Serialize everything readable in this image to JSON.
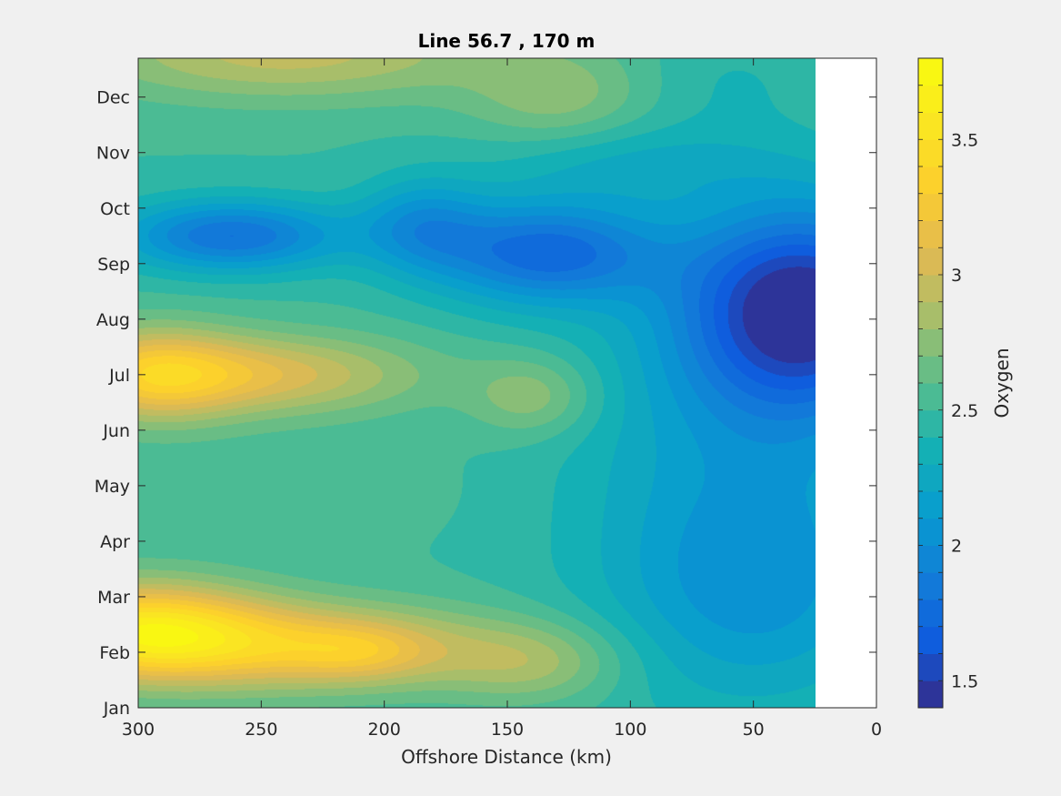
{
  "chart_data": {
    "type": "heatmap",
    "title": "Line 56.7 , 170 m",
    "xlabel": "Offshore Distance (km)",
    "ylabel": "",
    "xlim": [
      300,
      0
    ],
    "x_reversed": true,
    "x_ticks": [
      300,
      250,
      200,
      150,
      100,
      50,
      0
    ],
    "ylim": [
      1,
      12.7
    ],
    "y_ticks": [
      {
        "value": 1,
        "label": "Jan"
      },
      {
        "value": 2,
        "label": "Feb"
      },
      {
        "value": 3,
        "label": "Mar"
      },
      {
        "value": 4,
        "label": "Apr"
      },
      {
        "value": 5,
        "label": "May"
      },
      {
        "value": 6,
        "label": "Jun"
      },
      {
        "value": 7,
        "label": "Jul"
      },
      {
        "value": 8,
        "label": "Aug"
      },
      {
        "value": 9,
        "label": "Sep"
      },
      {
        "value": 10,
        "label": "Oct"
      },
      {
        "value": 11,
        "label": "Nov"
      },
      {
        "value": 12,
        "label": "Dec"
      }
    ],
    "data_x_range": [
      300,
      25
    ],
    "colorbar": {
      "label": "Oxygen",
      "range": [
        1.4,
        3.8
      ],
      "ticks": [
        1.5,
        2,
        2.5,
        3,
        3.5
      ],
      "levels": 24,
      "colormap": "parula"
    },
    "field": {
      "base": 2.5,
      "features": [
        {
          "x": 300,
          "y": 2.4,
          "sx": 35,
          "sy": 0.6,
          "a": 0.95
        },
        {
          "x": 235,
          "y": 2.1,
          "sx": 55,
          "sy": 0.55,
          "a": 0.65
        },
        {
          "x": 210,
          "y": 2.0,
          "sx": 20,
          "sy": 0.35,
          "a": 0.25
        },
        {
          "x": 295,
          "y": 7.0,
          "sx": 25,
          "sy": 0.6,
          "a": 0.6
        },
        {
          "x": 250,
          "y": 7.0,
          "sx": 45,
          "sy": 0.5,
          "a": 0.55
        },
        {
          "x": 262,
          "y": 9.5,
          "sx": 32,
          "sy": 0.45,
          "a": -0.7
        },
        {
          "x": 185,
          "y": 9.7,
          "sx": 18,
          "sy": 0.6,
          "a": -0.4
        },
        {
          "x": 135,
          "y": 9.2,
          "sx": 32,
          "sy": 0.65,
          "a": -0.75
        },
        {
          "x": 30,
          "y": 8.2,
          "sx": 35,
          "sy": 1.3,
          "a": -1.05
        },
        {
          "x": 55,
          "y": 5.5,
          "sx": 50,
          "sy": 2.5,
          "a": -0.3
        },
        {
          "x": 50,
          "y": 3.0,
          "sx": 40,
          "sy": 1.4,
          "a": -0.3
        },
        {
          "x": 140,
          "y": 6.6,
          "sx": 18,
          "sy": 0.5,
          "a": 0.3
        },
        {
          "x": 240,
          "y": 12.8,
          "sx": 60,
          "sy": 0.6,
          "a": 0.45
        },
        {
          "x": 130,
          "y": 12.0,
          "sx": 25,
          "sy": 0.6,
          "a": 0.25
        },
        {
          "x": 60,
          "y": 12.3,
          "sx": 25,
          "sy": 0.7,
          "a": -0.1
        },
        {
          "x": 140,
          "y": 1.8,
          "sx": 25,
          "sy": 0.5,
          "a": 0.3
        },
        {
          "x": 230,
          "y": 5.0,
          "sx": 50,
          "sy": 0.7,
          "a": 0.05
        },
        {
          "x": 100,
          "y": 10.8,
          "sx": 40,
          "sy": 0.5,
          "a": -0.2
        }
      ]
    }
  }
}
